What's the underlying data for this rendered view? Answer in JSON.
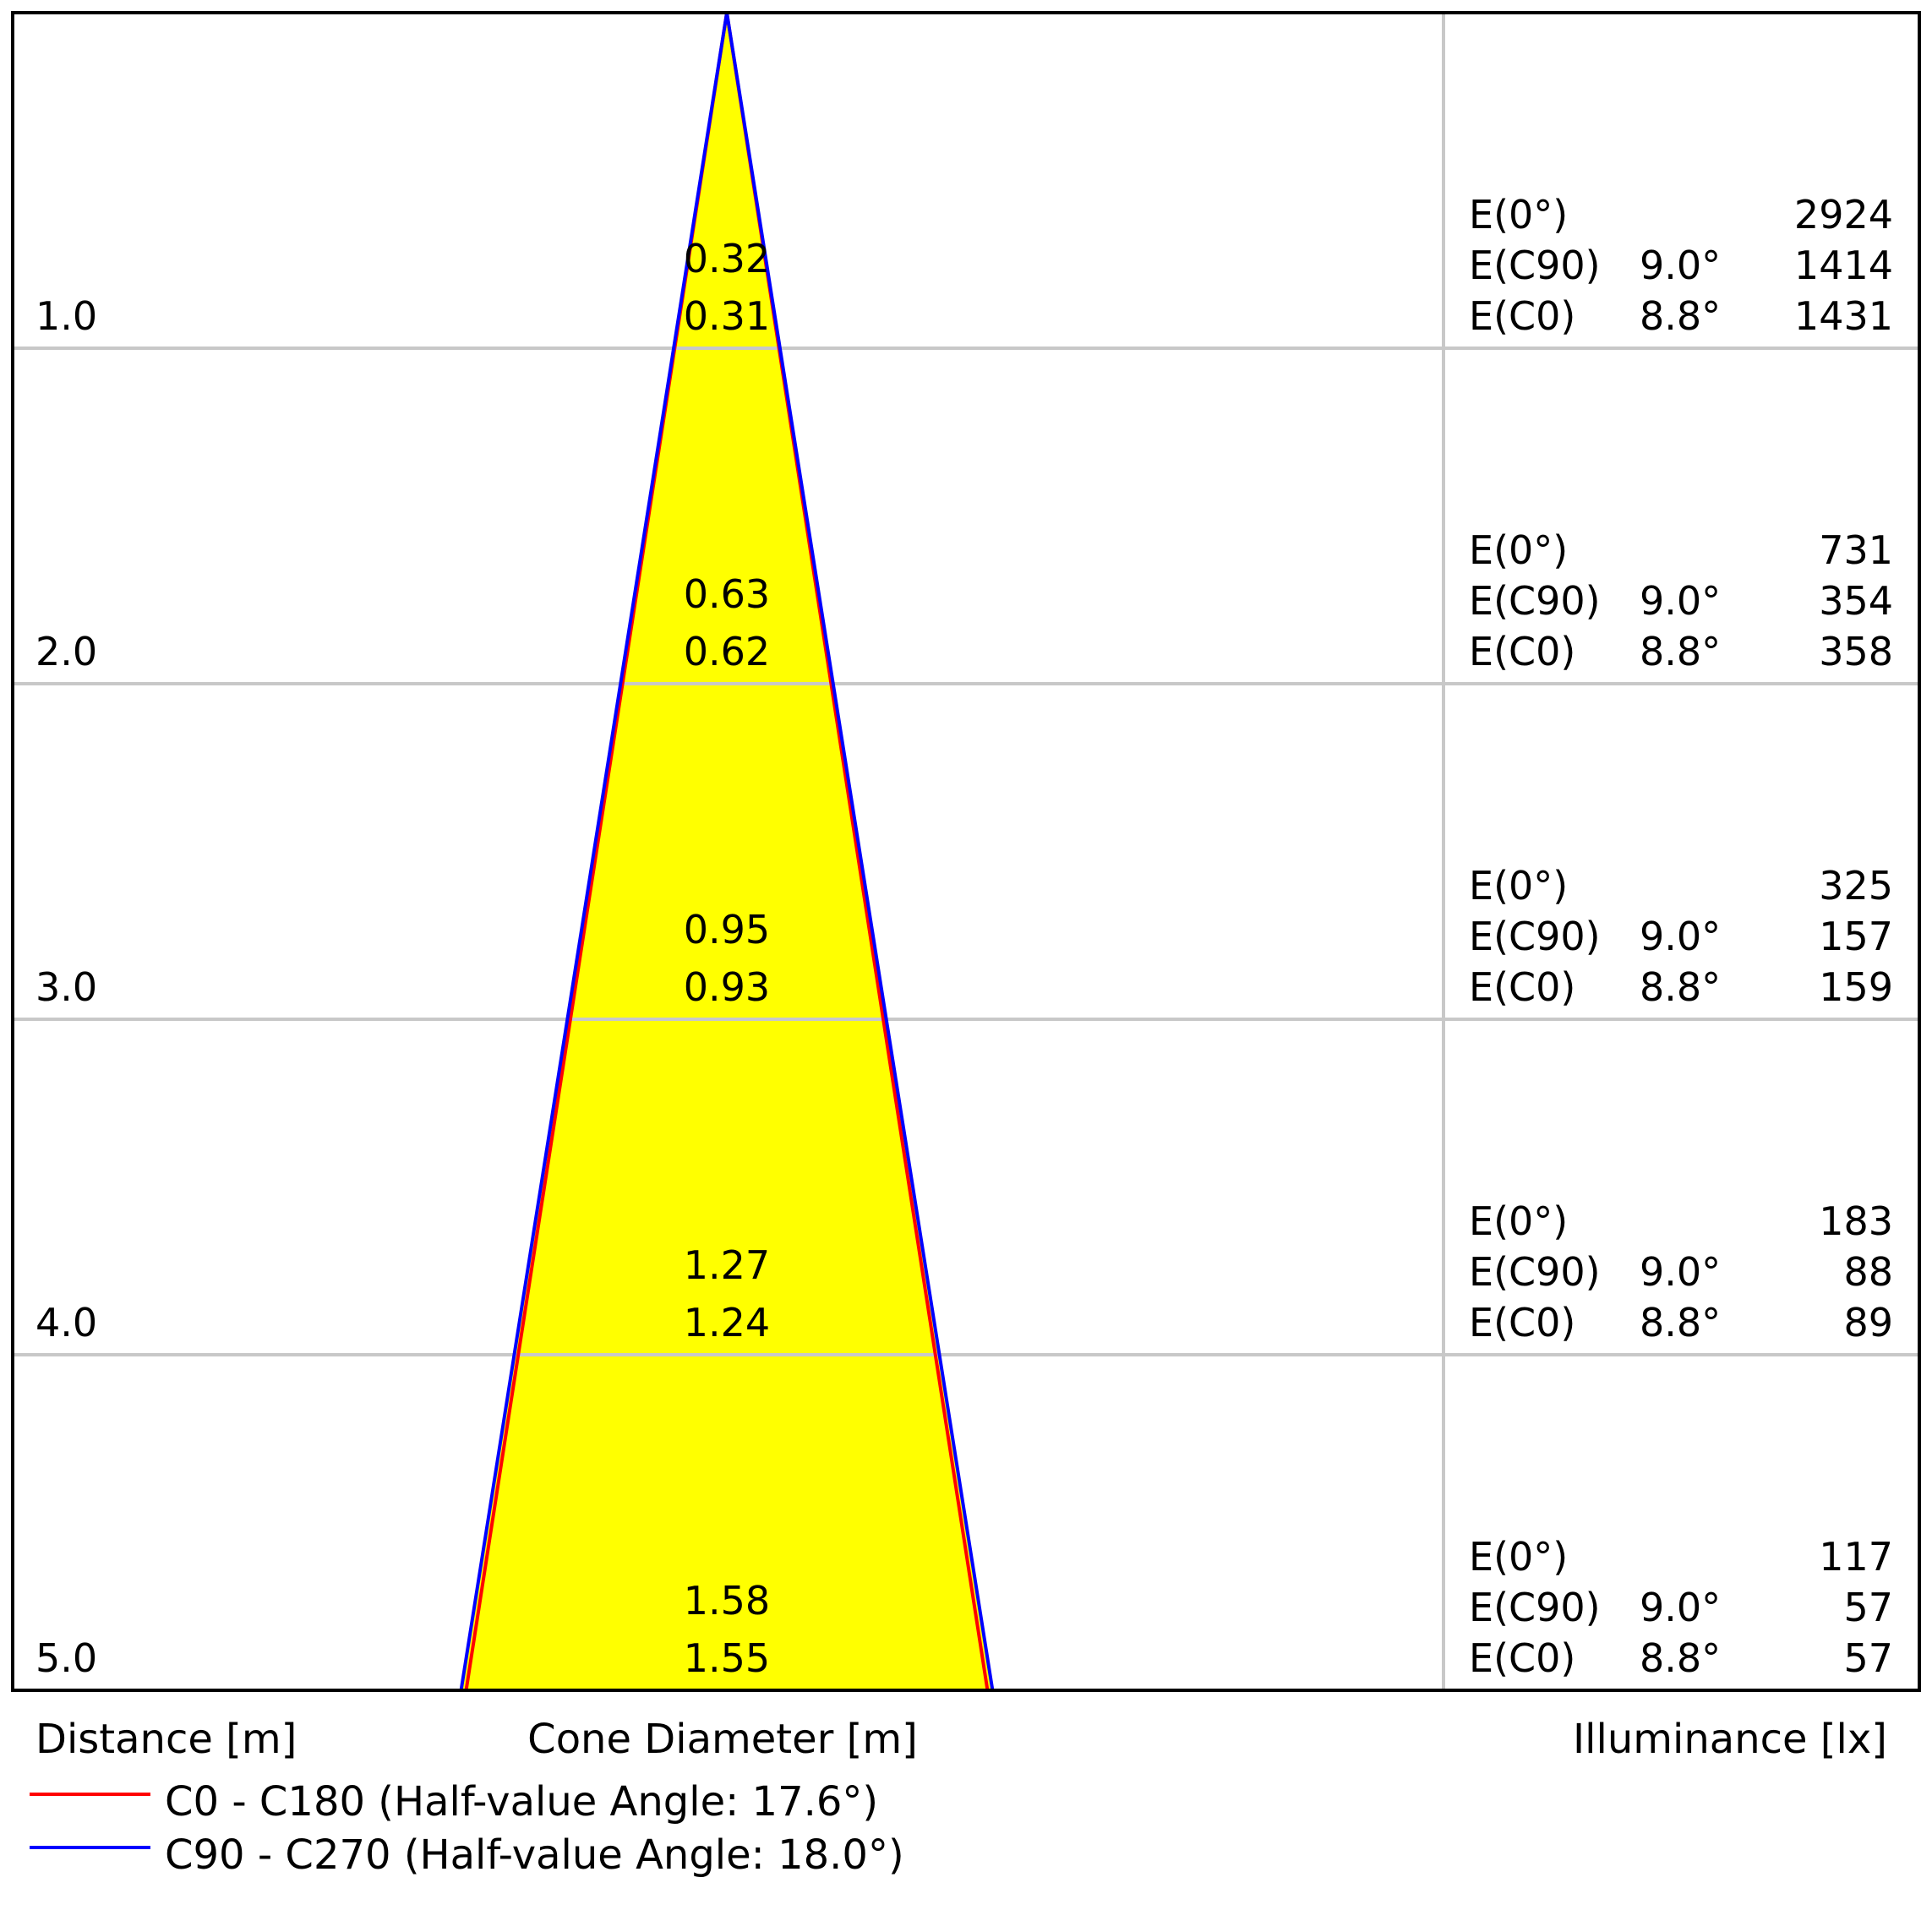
{
  "chart_data": {
    "type": "cone_diagram",
    "distance_label": "Distance [m]",
    "cone_label": "Cone Diameter [m]",
    "illuminance_label": "Illuminance [lx]",
    "series": [
      {
        "name": "C0 - C180 (Half-value Angle: 17.6°)",
        "color": "#ff0000",
        "half_value_angle": 17.6
      },
      {
        "name": "C90 - C270 (Half-value Angle: 18.0°)",
        "color": "#0000ff",
        "half_value_angle": 18.0
      }
    ],
    "rows": [
      {
        "distance": "1.0",
        "d_c90": "0.32",
        "d_c0": "0.31",
        "e0": "2924",
        "ec90_angle": "9.0°",
        "ec90": "1414",
        "ec0_angle": "8.8°",
        "ec0": "1431"
      },
      {
        "distance": "2.0",
        "d_c90": "0.63",
        "d_c0": "0.62",
        "e0": "731",
        "ec90_angle": "9.0°",
        "ec90": "354",
        "ec0_angle": "8.8°",
        "ec0": "358"
      },
      {
        "distance": "3.0",
        "d_c90": "0.95",
        "d_c0": "0.93",
        "e0": "325",
        "ec90_angle": "9.0°",
        "ec90": "157",
        "ec0_angle": "8.8°",
        "ec0": "159"
      },
      {
        "distance": "4.0",
        "d_c90": "1.27",
        "d_c0": "1.24",
        "e0": "183",
        "ec90_angle": "9.0°",
        "ec90": "88",
        "ec0_angle": "8.8°",
        "ec0": "89"
      },
      {
        "distance": "5.0",
        "d_c90": "1.58",
        "d_c0": "1.55",
        "e0": "117",
        "ec90_angle": "9.0°",
        "ec90": "57",
        "ec0_angle": "8.8°",
        "ec0": "57"
      }
    ],
    "e0_label": "E(0°)",
    "ec90_label": "E(C90)",
    "ec0_label": "E(C0)",
    "fill_color": "#ffff00",
    "grid_color": "#c8c8c8"
  }
}
